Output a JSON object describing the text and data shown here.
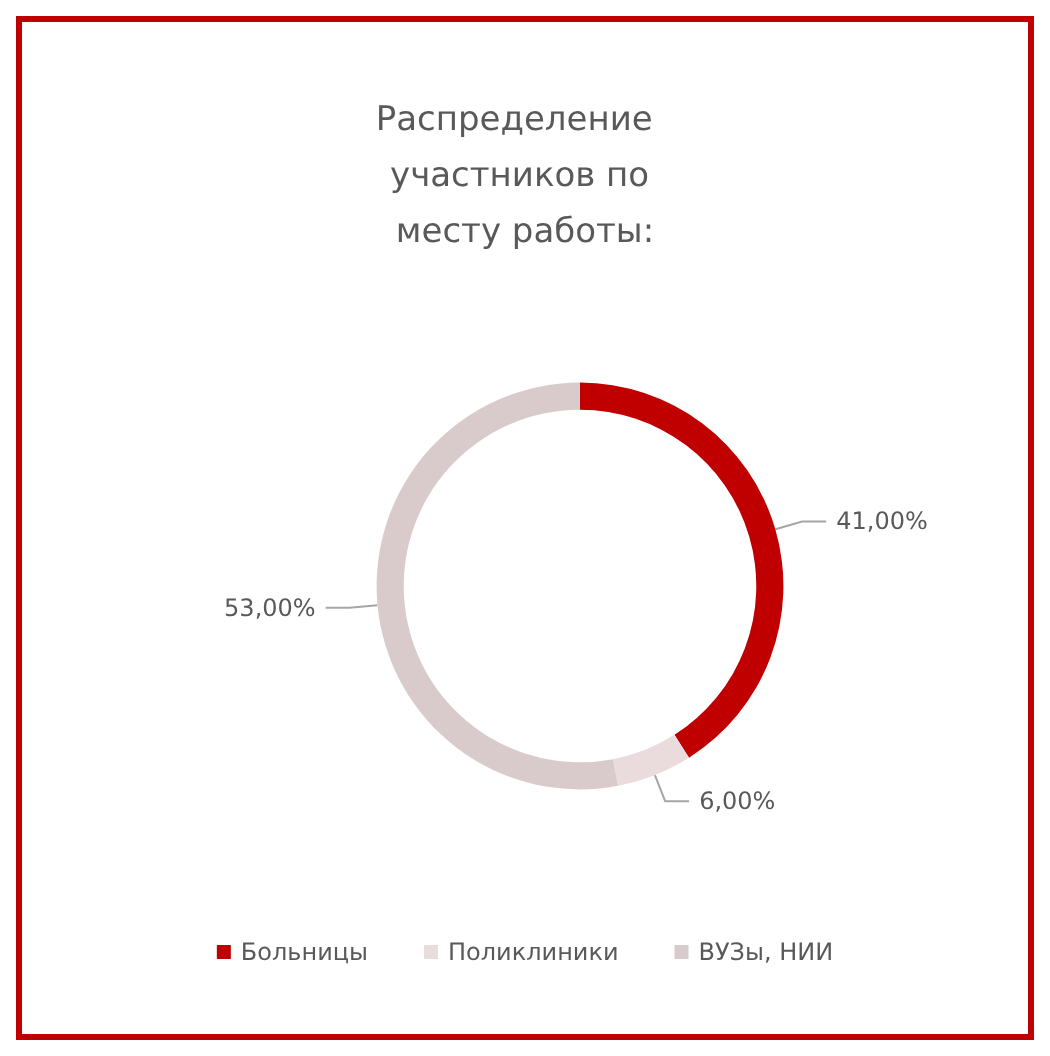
{
  "chart_data": {
    "type": "donut",
    "title": "Распределение  участников по месту работы:",
    "categories": [
      "Больницы",
      "Поликлиники",
      "ВУЗы, НИИ"
    ],
    "values": [
      41,
      6,
      53
    ],
    "colors": [
      "#c00000",
      "#eadcdc",
      "#d9cbcb"
    ],
    "value_labels": [
      "41,00%",
      "6,00%",
      "53,00%"
    ],
    "legend": "bottom"
  }
}
